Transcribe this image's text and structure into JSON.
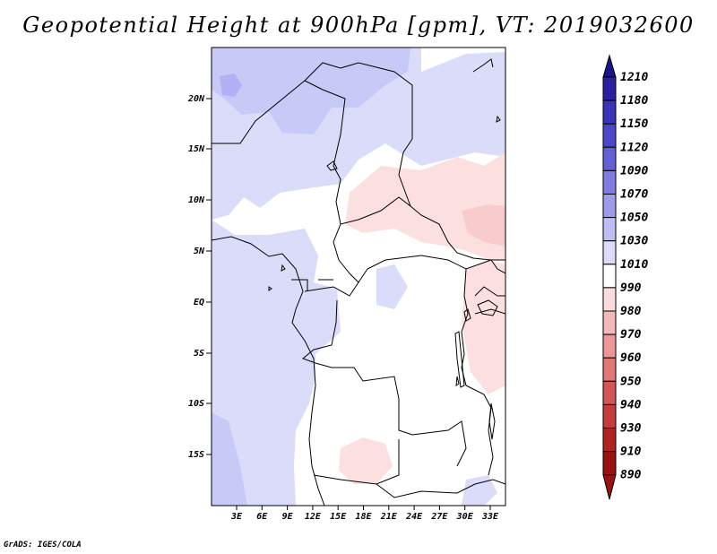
{
  "title": "Geopotential Height at 900hPa [gpm], VT: 2019032600",
  "credit": "GrADS: IGES/COLA",
  "map": {
    "lat_ticks": [
      "20N",
      "15N",
      "10N",
      "5N",
      "EQ",
      "5S",
      "10S",
      "15S"
    ],
    "lon_ticks": [
      "3E",
      "6E",
      "9E",
      "12E",
      "15E",
      "18E",
      "21E",
      "24E",
      "27E",
      "30E",
      "33E"
    ],
    "colors": {
      "high_light": "#dadcf9",
      "high_mid": "#c7c9f7",
      "high_strong": "#b3b1f3",
      "low_light": "#fce0e0",
      "low_mid": "#f8cccc",
      "neutral": "#ffffff",
      "border": "#000000"
    }
  },
  "colorbar": {
    "levels": [
      "1210",
      "1180",
      "1150",
      "1120",
      "1090",
      "1070",
      "1050",
      "1030",
      "1010",
      "990",
      "980",
      "970",
      "960",
      "950",
      "940",
      "930",
      "910",
      "890"
    ],
    "colors": [
      "#1d1487",
      "#2a21a1",
      "#3a33b8",
      "#4c47c9",
      "#6461d6",
      "#7e7ce0",
      "#9d9cea",
      "#bdbcf3",
      "#dcdcf9",
      "#ffffff",
      "#fbdcdc",
      "#f4b9b9",
      "#eb9797",
      "#e07575",
      "#d35555",
      "#c43c3c",
      "#b02323",
      "#9a1212"
    ]
  }
}
